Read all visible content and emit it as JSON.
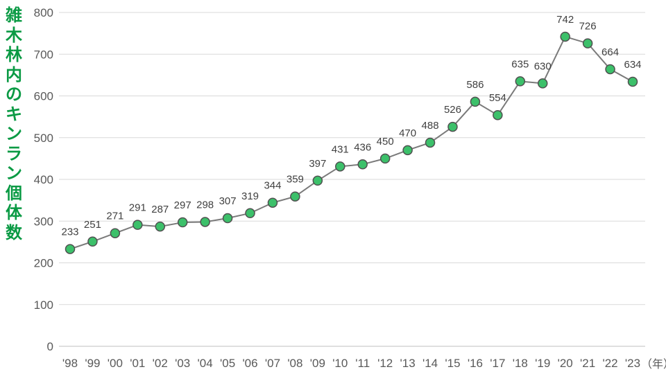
{
  "chart_data": {
    "type": "line",
    "title": "",
    "ylabel": "雑木林内のキンラン個体数",
    "xlabel": "（年）",
    "categories": [
      "'98",
      "'99",
      "'00",
      "'01",
      "'02",
      "'03",
      "'04",
      "'05",
      "'06",
      "'07",
      "'08",
      "'09",
      "'10",
      "'11",
      "'12",
      "'13",
      "'14",
      "'15",
      "'16",
      "'17",
      "'18",
      "'19",
      "'20",
      "'21",
      "'22",
      "'23"
    ],
    "values": [
      233,
      251,
      271,
      291,
      287,
      297,
      298,
      307,
      319,
      344,
      359,
      397,
      431,
      436,
      450,
      470,
      488,
      526,
      586,
      554,
      635,
      630,
      742,
      726,
      664,
      634
    ],
    "ylim": [
      0,
      800
    ],
    "yticks": [
      0,
      100,
      200,
      300,
      400,
      500,
      600,
      700,
      800
    ],
    "grid": true,
    "data_labels": true,
    "colors": {
      "line": "#7a7a7a",
      "marker": "#3cc06a",
      "marker_edge": "#505050",
      "ylabel": "#0a9a44",
      "grid": "#d9d9d9"
    }
  }
}
